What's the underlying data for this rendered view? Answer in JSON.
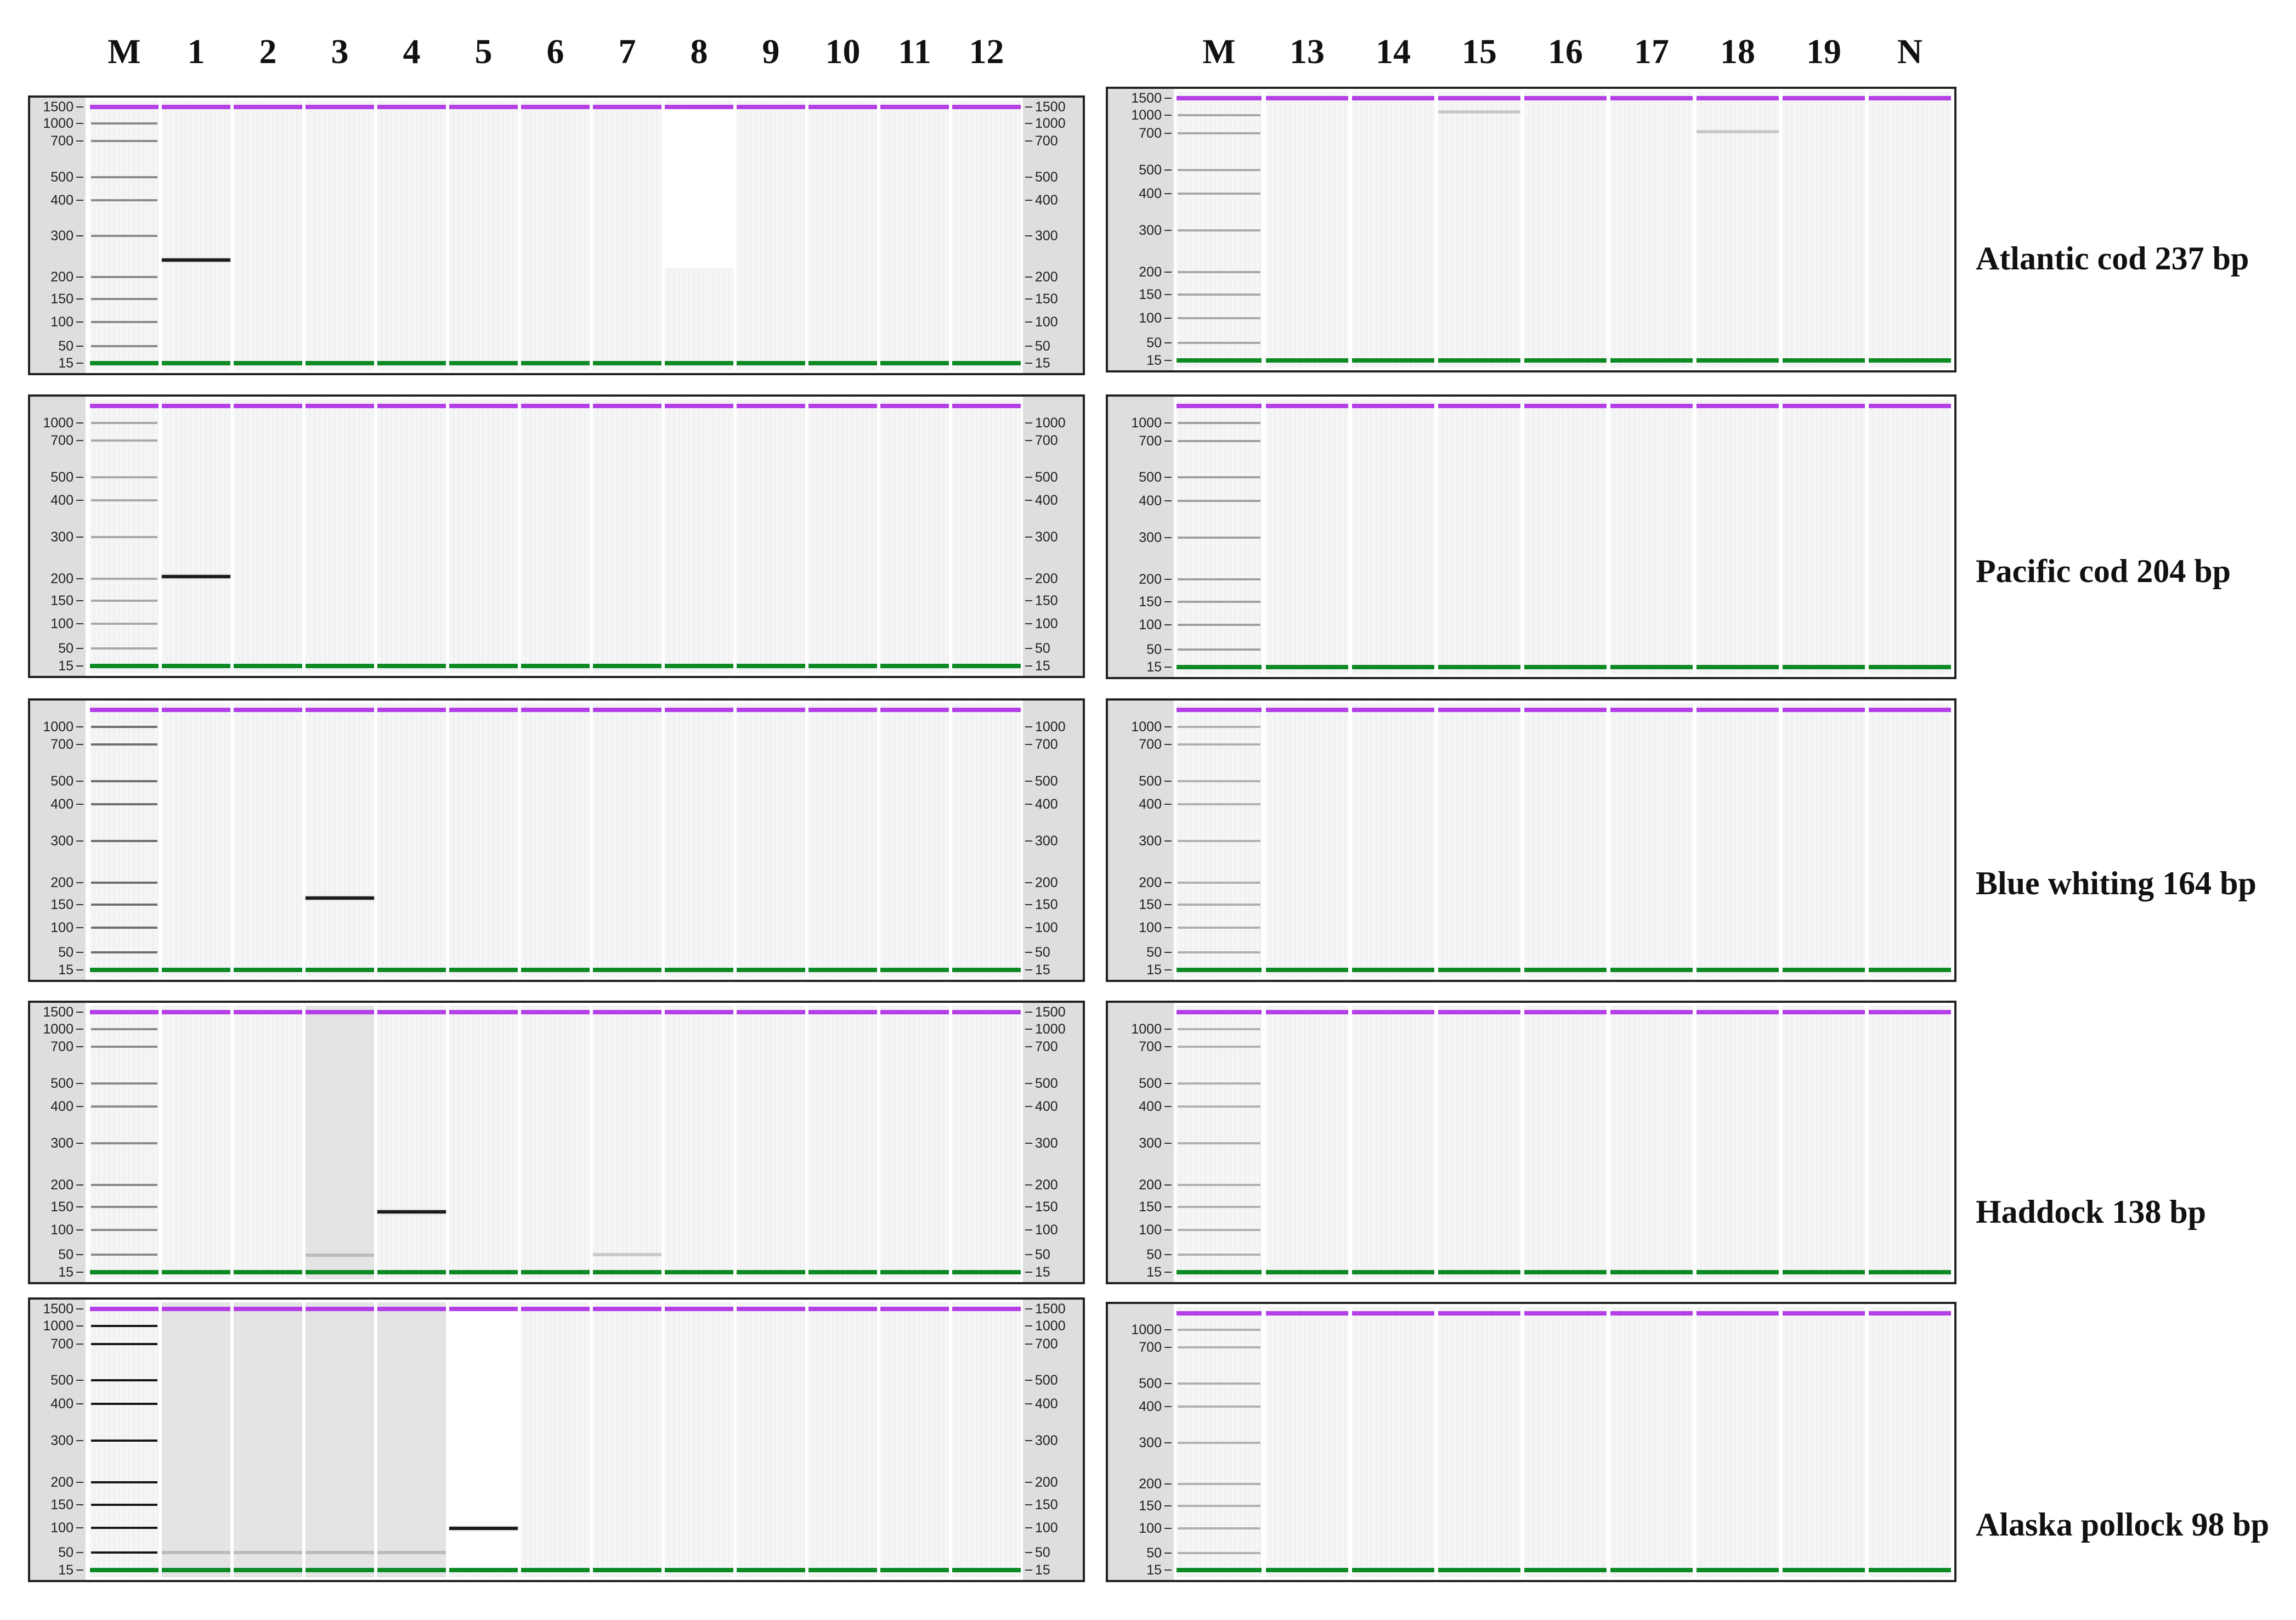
{
  "lane_labels": {
    "left": [
      "M",
      "1",
      "2",
      "3",
      "4",
      "5",
      "6",
      "7",
      "8",
      "9",
      "10",
      "11",
      "12"
    ],
    "right": [
      "M",
      "13",
      "14",
      "15",
      "16",
      "17",
      "18",
      "19",
      "N"
    ]
  },
  "colors": {
    "upper_marker": "#b43fe6",
    "lower_marker": "#0d8a24",
    "band": "#1c1c1c",
    "axis_background": "#dedede",
    "shaded_lane_background": "#e4e4e4",
    "panel_border": "#222222"
  },
  "rows": [
    {
      "target_label": "Atlantic cod 237 bp",
      "left": {
        "axis_labels": [
          "1500",
          "1000",
          "700",
          "500",
          "400",
          "300",
          "200",
          "150",
          "100",
          "50",
          "15"
        ],
        "ladder_color": "#8a8a8a",
        "bands": [
          {
            "lane": "1",
            "bp": 237
          }
        ],
        "clear_regions": [
          {
            "lane": "8",
            "from_bp": 1500,
            "to_bp": 220
          }
        ]
      },
      "right": {
        "axis_labels": [
          "1500",
          "1000",
          "700",
          "500",
          "400",
          "300",
          "200",
          "150",
          "100",
          "50",
          "15"
        ],
        "ladder_color": "#a8a8a8",
        "bands": [
          {
            "lane": "15",
            "bp": 1080,
            "faint": true
          },
          {
            "lane": "18",
            "bp": 720,
            "faint": true
          }
        ]
      }
    },
    {
      "target_label": "Pacific cod 204 bp",
      "left": {
        "axis_labels": [
          "1000",
          "700",
          "500",
          "400",
          "300",
          "200",
          "150",
          "100",
          "50",
          "15"
        ],
        "ladder_color": "#a8a8a8",
        "bands": [
          {
            "lane": "1",
            "bp": 204
          }
        ]
      },
      "right": {
        "axis_labels": [
          "1000",
          "700",
          "500",
          "400",
          "300",
          "200",
          "150",
          "100",
          "50",
          "15"
        ],
        "ladder_color": "#a0a0a0",
        "bands": []
      }
    },
    {
      "target_label": "Blue whiting 164 bp",
      "left": {
        "axis_labels": [
          "1000",
          "700",
          "500",
          "400",
          "300",
          "200",
          "150",
          "100",
          "50",
          "15"
        ],
        "ladder_color": "#6e6e6e",
        "bands": [
          {
            "lane": "3",
            "bp": 164
          }
        ]
      },
      "right": {
        "axis_labels": [
          "1000",
          "700",
          "500",
          "400",
          "300",
          "200",
          "150",
          "100",
          "50",
          "15"
        ],
        "ladder_color": "#b0b0b0",
        "bands": []
      }
    },
    {
      "target_label": "Haddock 138 bp",
      "left": {
        "axis_labels": [
          "1500",
          "1000",
          "700",
          "500",
          "400",
          "300",
          "200",
          "150",
          "100",
          "50",
          "15"
        ],
        "ladder_color": "#8a8a8a",
        "shaded_lanes": [
          "3"
        ],
        "bands": [
          {
            "lane": "4",
            "bp": 138
          },
          {
            "lane": "3",
            "bp": 48,
            "faint": true
          },
          {
            "lane": "7",
            "bp": 50,
            "faint": true
          }
        ]
      },
      "right": {
        "axis_labels": [
          "1000",
          "700",
          "500",
          "400",
          "300",
          "200",
          "150",
          "100",
          "50",
          "15"
        ],
        "ladder_color": "#b0b0b0",
        "bands": []
      }
    },
    {
      "target_label": "Alaska pollock 98 bp",
      "left": {
        "axis_labels": [
          "1500",
          "1000",
          "700",
          "500",
          "400",
          "300",
          "200",
          "150",
          "100",
          "50",
          "15"
        ],
        "ladder_color": "#151515",
        "shaded_lanes": [
          "1",
          "2",
          "3",
          "4"
        ],
        "clear_regions": [
          {
            "lane": "5",
            "from_bp": 1500,
            "to_bp": 15
          }
        ],
        "bands": [
          {
            "lane": "5",
            "bp": 98
          },
          {
            "lane": "1",
            "bp": 50,
            "faint": true
          },
          {
            "lane": "2",
            "bp": 50,
            "faint": true
          },
          {
            "lane": "3",
            "bp": 50,
            "faint": true
          },
          {
            "lane": "4",
            "bp": 50,
            "faint": true
          }
        ]
      },
      "right": {
        "axis_labels": [
          "1000",
          "700",
          "500",
          "400",
          "300",
          "200",
          "150",
          "100",
          "50",
          "15"
        ],
        "ladder_color": "#b0b0b0",
        "bands": []
      }
    }
  ]
}
